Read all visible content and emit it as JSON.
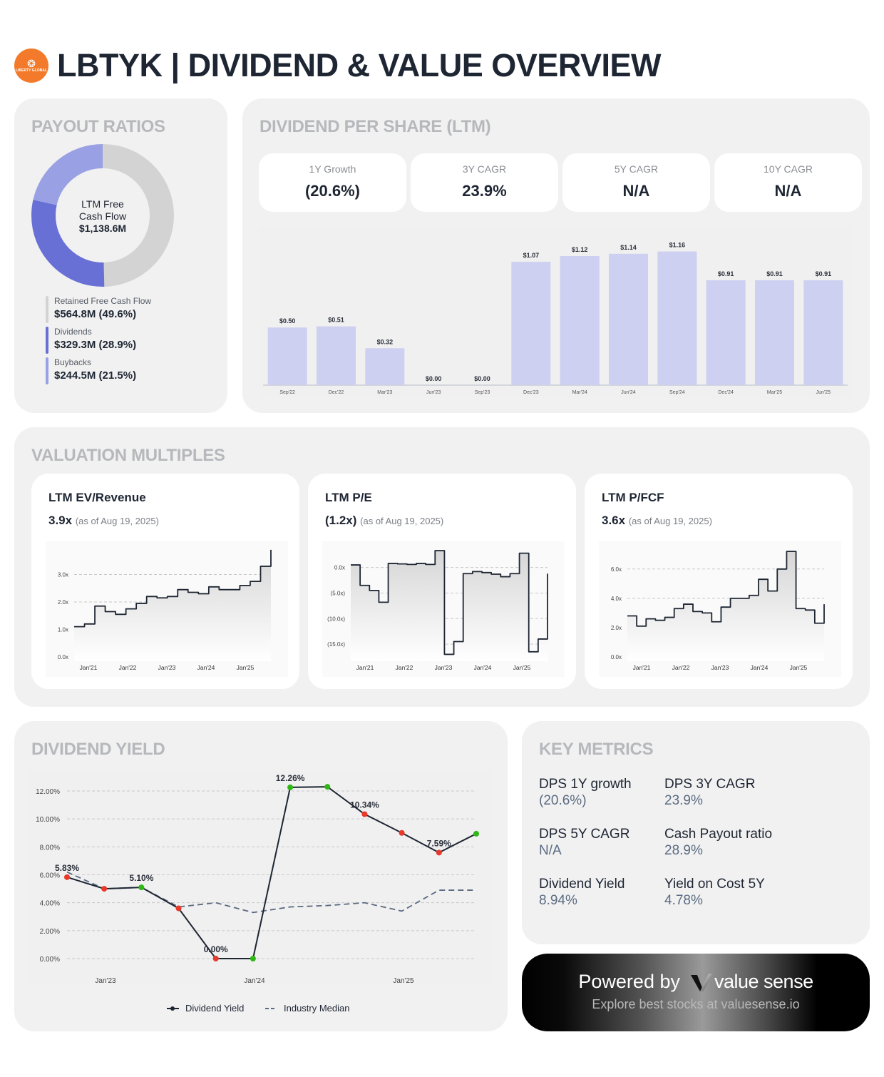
{
  "header": {
    "title": "LBTYK | DIVIDEND & VALUE OVERVIEW",
    "logo_text": "LIBERTY GLOBAL",
    "logo_color": "#f27a2a"
  },
  "payout": {
    "title": "PAYOUT RATIOS",
    "center_line1": "LTM Free",
    "center_line2": "Cash Flow",
    "center_value": "$1,138.6M",
    "items": [
      {
        "label": "Retained Free Cash Flow",
        "value": "$564.8M (49.6%)",
        "pct": 49.6,
        "color": "#d3d3d3"
      },
      {
        "label": "Dividends",
        "value": "$329.3M (28.9%)",
        "pct": 28.9,
        "color": "#6870d6"
      },
      {
        "label": "Buybacks",
        "value": "$244.5M (21.5%)",
        "pct": 21.5,
        "color": "#99a0e4"
      }
    ]
  },
  "dps": {
    "title": "DIVIDEND PER SHARE (LTM)",
    "cards": [
      {
        "label": "1Y Growth",
        "value": "(20.6%)"
      },
      {
        "label": "3Y CAGR",
        "value": "23.9%"
      },
      {
        "label": "5Y CAGR",
        "value": "N/A"
      },
      {
        "label": "10Y CAGR",
        "value": "N/A"
      }
    ]
  },
  "valuation": {
    "title": "VALUATION MULTIPLES",
    "cards": [
      {
        "title": "LTM EV/Revenue",
        "value": "3.9x",
        "asof": "(as of Aug 19, 2025)"
      },
      {
        "title": "LTM P/E",
        "value": "(1.2x)",
        "asof": "(as of Aug 19, 2025)"
      },
      {
        "title": "LTM P/FCF",
        "value": "3.6x",
        "asof": "(as of Aug 19, 2025)"
      }
    ]
  },
  "yield": {
    "title": "DIVIDEND YIELD",
    "legend": {
      "series1": "Dividend Yield",
      "series2": "Industry Median"
    }
  },
  "metrics": {
    "title": "KEY METRICS",
    "items": [
      {
        "label": "DPS 1Y growth",
        "value": "(20.6%)"
      },
      {
        "label": "DPS 3Y CAGR",
        "value": "23.9%"
      },
      {
        "label": "DPS 5Y CAGR",
        "value": "N/A"
      },
      {
        "label": "Cash Payout ratio",
        "value": "28.9%"
      },
      {
        "label": "Dividend Yield",
        "value": "8.94%"
      },
      {
        "label": "Yield on Cost 5Y",
        "value": "4.78%"
      }
    ]
  },
  "powered": {
    "prefix": "Powered by",
    "brand": "value sense",
    "sub": "Explore best stocks at valuesense.io"
  },
  "chart_data": [
    {
      "type": "pie",
      "title": "PAYOUT RATIOS",
      "categories": [
        "Retained Free Cash Flow",
        "Dividends",
        "Buybacks"
      ],
      "values": [
        564.8,
        329.3,
        244.5
      ],
      "percent": [
        49.6,
        28.9,
        21.5
      ],
      "center_label": "LTM Free Cash Flow $1,138.6M"
    },
    {
      "type": "bar",
      "title": "DIVIDEND PER SHARE (LTM)",
      "categories": [
        "Sep'22",
        "Dec'22",
        "Mar'23",
        "Jun'23",
        "Sep'23",
        "Dec'23",
        "Mar'24",
        "Jun'24",
        "Sep'24",
        "Dec'24",
        "Mar'25",
        "Jun'25"
      ],
      "values": [
        0.5,
        0.51,
        0.32,
        0.0,
        0.0,
        1.07,
        1.12,
        1.14,
        1.16,
        0.91,
        0.91,
        0.91
      ],
      "labels": [
        "$0.50",
        "$0.51",
        "$0.32",
        "$0.00",
        "$0.00",
        "$1.07",
        "$1.12",
        "$1.14",
        "$1.16",
        "$0.91",
        "$0.91",
        "$0.91"
      ],
      "ylim": [
        0,
        1.25
      ],
      "color": "#cdd0f1"
    },
    {
      "type": "area",
      "title": "LTM EV/Revenue",
      "x_ticks": [
        "Jan'21",
        "Jan'22",
        "Jan'23",
        "Jan'24",
        "Jan'25"
      ],
      "y_ticks": [
        "0.0x",
        "1.0x",
        "2.0x",
        "3.0x"
      ],
      "x": [
        "Oct'20",
        "Jan'21",
        "Apr'21",
        "Jul'21",
        "Oct'21",
        "Jan'22",
        "Apr'22",
        "Jul'22",
        "Oct'22",
        "Jan'23",
        "Apr'23",
        "Jul'23",
        "Oct'23",
        "Jan'24",
        "Apr'24",
        "Jul'24",
        "Oct'24",
        "Jan'25",
        "Apr'25",
        "Aug'25"
      ],
      "values": [
        1.1,
        1.2,
        1.85,
        1.65,
        1.55,
        1.75,
        1.95,
        2.2,
        2.15,
        2.2,
        2.45,
        2.35,
        2.3,
        2.55,
        2.45,
        2.45,
        2.6,
        2.75,
        3.3,
        3.9
      ],
      "ylim": [
        0,
        4
      ]
    },
    {
      "type": "area",
      "title": "LTM P/E",
      "x_ticks": [
        "Jan'21",
        "Jan'22",
        "Jan'23",
        "Jan'24",
        "Jan'25"
      ],
      "y_ticks": [
        "0.0x",
        "(5.0x)",
        "(10.0x)",
        "(15.0x)"
      ],
      "x": [
        "Oct'20",
        "Jan'21",
        "Apr'21",
        "Jul'21",
        "Oct'21",
        "Jan'22",
        "Apr'22",
        "Jul'22",
        "Oct'22",
        "Jan'23",
        "Feb'23",
        "Apr'23",
        "Jul'23",
        "Oct'23",
        "Jan'24",
        "Apr'24",
        "Jul'24",
        "Oct'24",
        "Jan'25",
        "Feb'25",
        "Apr'25",
        "Aug'25"
      ],
      "values": [
        0.5,
        -3.5,
        -4.5,
        -6.8,
        0.8,
        0.7,
        0.6,
        0.8,
        0.6,
        3.3,
        -17.0,
        -14.5,
        -1.2,
        -0.8,
        -1.0,
        -1.3,
        -1.8,
        -1.2,
        2.8,
        -16.5,
        -14.0,
        -1.2
      ],
      "ylim": [
        -17.5,
        4
      ]
    },
    {
      "type": "area",
      "title": "LTM P/FCF",
      "x_ticks": [
        "Jan'21",
        "Jan'22",
        "Jan'23",
        "Jan'24",
        "Jan'25"
      ],
      "y_ticks": [
        "0.0x",
        "2.0x",
        "4.0x",
        "6.0x"
      ],
      "x": [
        "Oct'20",
        "Jan'21",
        "Apr'21",
        "Jul'21",
        "Oct'21",
        "Jan'22",
        "Apr'22",
        "Jul'22",
        "Oct'22",
        "Jan'23",
        "Apr'23",
        "Jul'23",
        "Oct'23",
        "Jan'24",
        "Apr'24",
        "Jul'24",
        "Oct'24",
        "Dec'24",
        "Jan'25",
        "Apr'25",
        "Jun'25",
        "Aug'25"
      ],
      "values": [
        2.8,
        2.1,
        2.6,
        2.5,
        2.7,
        3.3,
        3.6,
        3.1,
        3.0,
        2.4,
        3.4,
        4.0,
        4.0,
        4.2,
        5.3,
        4.5,
        6.0,
        7.2,
        3.3,
        3.2,
        2.3,
        3.6
      ],
      "ylim": [
        0,
        7.5
      ]
    },
    {
      "type": "line",
      "title": "DIVIDEND YIELD",
      "x_ticks": [
        "Jan'23",
        "Jan'24",
        "Jan'25"
      ],
      "y_ticks": [
        "0.00%",
        "2.00%",
        "4.00%",
        "6.00%",
        "8.00%",
        "10.00%",
        "12.00%"
      ],
      "x": [
        "Sep'22",
        "Dec'22",
        "Mar'23",
        "Jun'23",
        "Sep'23",
        "Dec'23",
        "Mar'24",
        "Jun'24",
        "Sep'24",
        "Dec'24",
        "Mar'25",
        "Jun'25"
      ],
      "series": [
        {
          "name": "Dividend Yield",
          "values": [
            5.83,
            5.0,
            5.1,
            3.6,
            0.0,
            0.0,
            12.26,
            12.3,
            10.34,
            9.0,
            7.59,
            8.94
          ],
          "labels": [
            "5.83%",
            null,
            "5.10%",
            null,
            "0.00%",
            null,
            "12.26%",
            null,
            "10.34%",
            null,
            "7.59%",
            null
          ]
        },
        {
          "name": "Industry Median",
          "values": [
            6.2,
            5.0,
            5.1,
            3.7,
            4.0,
            3.3,
            3.7,
            3.8,
            4.0,
            3.4,
            4.9,
            4.9
          ]
        }
      ],
      "ylim": [
        -0.5,
        12.8
      ]
    }
  ]
}
